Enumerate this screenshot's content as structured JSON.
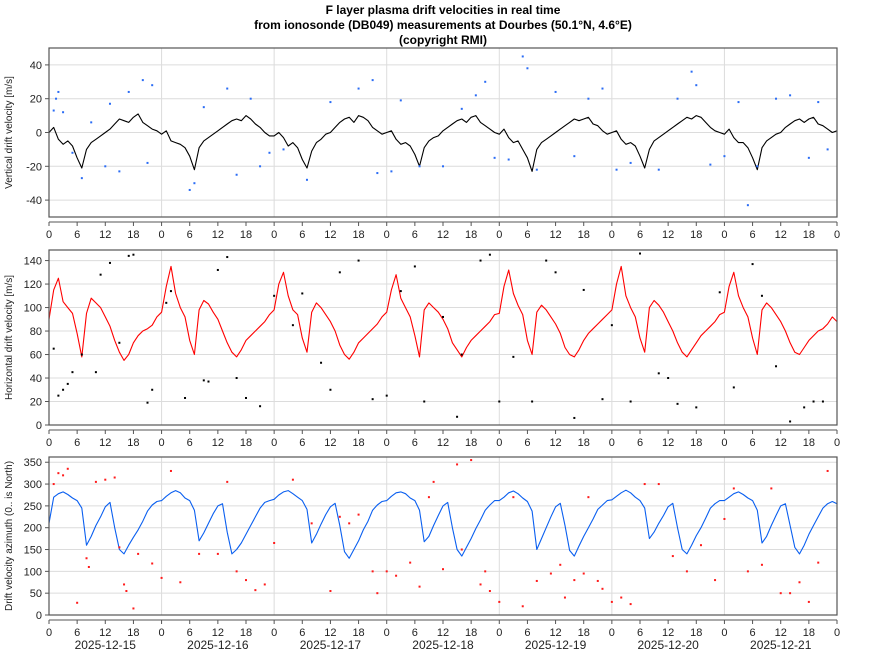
{
  "title": {
    "line1": "F layer plasma drift velocities in real time",
    "line2": "from ionosonde (DB049) measurements at Dourbes (50.1°N, 4.6°E)",
    "line3": "(copyright RMI)"
  },
  "chart_data": [
    {
      "type": "line",
      "name": "vertical",
      "ylabel": "Vertical drift velocity [m/s]",
      "ylim": [
        -50,
        50
      ],
      "yticks": [
        -40,
        -20,
        0,
        20,
        40
      ],
      "xlim_hours": [
        0,
        168
      ],
      "xtick_labels": [
        "0",
        "6",
        "12",
        "18",
        "0",
        "6",
        "12",
        "18",
        "0",
        "6",
        "12",
        "18",
        "0",
        "6",
        "12",
        "18",
        "0",
        "6",
        "12",
        "18",
        "0",
        "6",
        "12",
        "18",
        "0",
        "6",
        "12",
        "18",
        "0"
      ],
      "line_color": "#000000",
      "scatter_color": "#2a6cf5",
      "grid": true,
      "line_hourly": [
        0,
        3,
        -4,
        -7,
        -5,
        -8,
        -15,
        -21,
        -10,
        -6,
        -4,
        -2,
        0,
        2,
        5,
        8,
        7,
        6,
        9,
        11,
        6,
        4,
        2,
        1,
        -1,
        1,
        -5,
        -6,
        -7,
        -9,
        -14,
        -22,
        -9,
        -5,
        -3,
        -1,
        1,
        3,
        5,
        7,
        8,
        7,
        10,
        8,
        5,
        3,
        0,
        -2,
        -2,
        0,
        -3,
        -8,
        -6,
        -9,
        -16,
        -21,
        -11,
        -6,
        -4,
        -1,
        0,
        3,
        6,
        8,
        9,
        6,
        10,
        9,
        7,
        3,
        1,
        -1,
        0,
        1,
        -4,
        -7,
        -6,
        -8,
        -13,
        -20,
        -9,
        -5,
        -3,
        -2,
        1,
        3,
        5,
        7,
        8,
        6,
        9,
        10,
        6,
        4,
        2,
        0,
        -1,
        2,
        -3,
        -6,
        -5,
        -10,
        -15,
        -23,
        -10,
        -6,
        -4,
        -2,
        0,
        2,
        4,
        6,
        8,
        7,
        8,
        9,
        5,
        4,
        1,
        -1,
        0,
        1,
        -4,
        -7,
        -6,
        -8,
        -14,
        -21,
        -10,
        -5,
        -3,
        -1,
        1,
        3,
        5,
        7,
        9,
        8,
        10,
        9,
        6,
        3,
        1,
        0,
        -1,
        2,
        -3,
        -6,
        -6,
        -9,
        -15,
        -22,
        -9,
        -5,
        -3,
        -1,
        0,
        3,
        5,
        7,
        8,
        6,
        8,
        9,
        5,
        4,
        2,
        0,
        1
      ],
      "scatter": [
        [
          1,
          13
        ],
        [
          1.5,
          20
        ],
        [
          2,
          24
        ],
        [
          3,
          12
        ],
        [
          5,
          -12
        ],
        [
          7,
          -27
        ],
        [
          9,
          6
        ],
        [
          12,
          -20
        ],
        [
          13,
          17
        ],
        [
          15,
          -23
        ],
        [
          17,
          24
        ],
        [
          20,
          31
        ],
        [
          21,
          -18
        ],
        [
          22,
          28
        ],
        [
          30,
          -34
        ],
        [
          31,
          -30
        ],
        [
          33,
          15
        ],
        [
          38,
          26
        ],
        [
          40,
          -25
        ],
        [
          43,
          20
        ],
        [
          45,
          -20
        ],
        [
          47,
          -12
        ],
        [
          50,
          -10
        ],
        [
          55,
          -28
        ],
        [
          60,
          18
        ],
        [
          66,
          26
        ],
        [
          69,
          31
        ],
        [
          70,
          -24
        ],
        [
          73,
          -23
        ],
        [
          75,
          19
        ],
        [
          79,
          -20
        ],
        [
          84,
          -20
        ],
        [
          88,
          14
        ],
        [
          91,
          22
        ],
        [
          93,
          30
        ],
        [
          95,
          -15
        ],
        [
          98,
          -16
        ],
        [
          101,
          45
        ],
        [
          102,
          38
        ],
        [
          104,
          -22
        ],
        [
          108,
          24
        ],
        [
          112,
          -14
        ],
        [
          115,
          20
        ],
        [
          118,
          26
        ],
        [
          121,
          -22
        ],
        [
          124,
          -18
        ],
        [
          130,
          -22
        ],
        [
          134,
          20
        ],
        [
          137,
          36
        ],
        [
          138,
          28
        ],
        [
          141,
          -19
        ],
        [
          144,
          -14
        ],
        [
          147,
          18
        ],
        [
          149,
          -43
        ],
        [
          151,
          -20
        ],
        [
          155,
          20
        ],
        [
          158,
          22
        ],
        [
          162,
          -15
        ],
        [
          164,
          18
        ],
        [
          166,
          -10
        ]
      ]
    },
    {
      "type": "line",
      "name": "horizontal",
      "ylabel": "Horizontal drift velocity [m/s]",
      "ylim": [
        0,
        149
      ],
      "yticks": [
        0,
        20,
        40,
        60,
        80,
        100,
        120,
        140
      ],
      "xlim_hours": [
        0,
        168
      ],
      "xtick_labels": [
        "0",
        "6",
        "12",
        "18",
        "0",
        "6",
        "12",
        "18",
        "0",
        "6",
        "12",
        "18",
        "0",
        "6",
        "12",
        "18",
        "0",
        "6",
        "12",
        "18",
        "0",
        "6",
        "12",
        "18",
        "0",
        "6",
        "12",
        "18",
        "0"
      ],
      "line_color": "#ff0000",
      "scatter_color": "#000000",
      "grid": true,
      "line_hourly": [
        90,
        115,
        125,
        105,
        100,
        95,
        78,
        58,
        95,
        108,
        104,
        100,
        92,
        84,
        72,
        62,
        55,
        60,
        70,
        76,
        80,
        82,
        85,
        92,
        96,
        118,
        135,
        112,
        100,
        92,
        72,
        60,
        98,
        106,
        103,
        96,
        90,
        80,
        70,
        62,
        58,
        64,
        72,
        76,
        80,
        84,
        88,
        94,
        98,
        120,
        130,
        110,
        98,
        94,
        74,
        62,
        96,
        104,
        100,
        94,
        88,
        80,
        68,
        60,
        56,
        62,
        70,
        74,
        78,
        82,
        86,
        92,
        96,
        115,
        128,
        108,
        100,
        92,
        76,
        58,
        98,
        104,
        100,
        96,
        90,
        82,
        70,
        64,
        58,
        66,
        72,
        76,
        80,
        84,
        88,
        94,
        95,
        118,
        132,
        112,
        102,
        94,
        72,
        60,
        96,
        102,
        98,
        92,
        86,
        78,
        66,
        60,
        58,
        64,
        72,
        78,
        82,
        86,
        90,
        94,
        98,
        120,
        135,
        110,
        100,
        92,
        74,
        62,
        100,
        106,
        102,
        96,
        88,
        80,
        70,
        62,
        58,
        64,
        70,
        76,
        80,
        84,
        88,
        94,
        96,
        118,
        130,
        110,
        100,
        92,
        74,
        60,
        98,
        104,
        100,
        94,
        88,
        80,
        70,
        62,
        60,
        66,
        72,
        76,
        80,
        82,
        86,
        92,
        88
      ],
      "scatter": [
        [
          1,
          65
        ],
        [
          2,
          25
        ],
        [
          3,
          30
        ],
        [
          4,
          35
        ],
        [
          5,
          45
        ],
        [
          7,
          60
        ],
        [
          10,
          45
        ],
        [
          11,
          128
        ],
        [
          13,
          138
        ],
        [
          15,
          70
        ],
        [
          17,
          144
        ],
        [
          18,
          145
        ],
        [
          21,
          19
        ],
        [
          22,
          30
        ],
        [
          25,
          104
        ],
        [
          26,
          114
        ],
        [
          29,
          23
        ],
        [
          33,
          38
        ],
        [
          34,
          37
        ],
        [
          36,
          132
        ],
        [
          38,
          143
        ],
        [
          40,
          40
        ],
        [
          42,
          23
        ],
        [
          45,
          16
        ],
        [
          48,
          110
        ],
        [
          52,
          85
        ],
        [
          54,
          112
        ],
        [
          58,
          53
        ],
        [
          60,
          30
        ],
        [
          62,
          130
        ],
        [
          66,
          140
        ],
        [
          69,
          22
        ],
        [
          72,
          25
        ],
        [
          75,
          114
        ],
        [
          78,
          135
        ],
        [
          80,
          20
        ],
        [
          84,
          92
        ],
        [
          87,
          7
        ],
        [
          88,
          60
        ],
        [
          92,
          140
        ],
        [
          94,
          145
        ],
        [
          96,
          20
        ],
        [
          99,
          58
        ],
        [
          103,
          20
        ],
        [
          106,
          140
        ],
        [
          108,
          130
        ],
        [
          112,
          6
        ],
        [
          114,
          115
        ],
        [
          118,
          22
        ],
        [
          120,
          85
        ],
        [
          124,
          20
        ],
        [
          126,
          146
        ],
        [
          130,
          44
        ],
        [
          132,
          40
        ],
        [
          134,
          18
        ],
        [
          138,
          15
        ],
        [
          141,
          150
        ],
        [
          143,
          113
        ],
        [
          146,
          32
        ],
        [
          150,
          137
        ],
        [
          152,
          110
        ],
        [
          155,
          50
        ],
        [
          158,
          3
        ],
        [
          161,
          15
        ],
        [
          163,
          20
        ],
        [
          165,
          20
        ]
      ]
    },
    {
      "type": "line",
      "name": "azimuth",
      "ylabel": "Drift velocity azimuth (0.. is North)",
      "ylim": [
        0,
        362
      ],
      "yticks": [
        0,
        50,
        100,
        150,
        200,
        250,
        300,
        350
      ],
      "xlim_hours": [
        0,
        168
      ],
      "xtick_labels": [
        "0",
        "6",
        "12",
        "18",
        "0",
        "6",
        "12",
        "18",
        "0",
        "6",
        "12",
        "18",
        "0",
        "6",
        "12",
        "18",
        "0",
        "6",
        "12",
        "18",
        "0",
        "6",
        "12",
        "18",
        "0",
        "6",
        "12",
        "18",
        "0"
      ],
      "dates": [
        "2025-12-15",
        "2025-12-16",
        "2025-12-17",
        "2025-12-18",
        "2025-12-19",
        "2025-12-20",
        "2025-12-21"
      ],
      "line_color": "#0a5ff0",
      "scatter_color": "#ff1a1a",
      "grid": true,
      "line_hourly": [
        210,
        270,
        278,
        282,
        276,
        268,
        262,
        245,
        160,
        180,
        205,
        225,
        248,
        258,
        200,
        150,
        140,
        160,
        178,
        195,
        215,
        238,
        252,
        260,
        262,
        272,
        280,
        285,
        280,
        268,
        262,
        240,
        170,
        188,
        210,
        232,
        250,
        255,
        190,
        140,
        150,
        165,
        185,
        205,
        225,
        245,
        258,
        262,
        265,
        275,
        282,
        285,
        278,
        270,
        262,
        242,
        165,
        185,
        208,
        230,
        248,
        256,
        205,
        145,
        130,
        150,
        170,
        195,
        215,
        240,
        252,
        260,
        262,
        272,
        280,
        282,
        278,
        268,
        262,
        240,
        168,
        180,
        205,
        228,
        250,
        258,
        200,
        150,
        135,
        155,
        175,
        198,
        218,
        240,
        252,
        262,
        262,
        270,
        280,
        284,
        278,
        268,
        260,
        238,
        150,
        175,
        200,
        225,
        248,
        256,
        205,
        148,
        135,
        158,
        180,
        200,
        220,
        242,
        252,
        262,
        264,
        272,
        280,
        286,
        280,
        270,
        262,
        245,
        175,
        190,
        210,
        228,
        248,
        256,
        200,
        150,
        140,
        160,
        182,
        200,
        222,
        245,
        255,
        262,
        262,
        270,
        278,
        282,
        276,
        268,
        262,
        240,
        165,
        180,
        205,
        228,
        250,
        255,
        205,
        155,
        140,
        160,
        185,
        205,
        225,
        245,
        255,
        260,
        255
      ],
      "scatter": [
        [
          1,
          300
        ],
        [
          2,
          325
        ],
        [
          3,
          320
        ],
        [
          4,
          335
        ],
        [
          6,
          28
        ],
        [
          8,
          130
        ],
        [
          8.5,
          110
        ],
        [
          10,
          305
        ],
        [
          12,
          310
        ],
        [
          14,
          315
        ],
        [
          15,
          155
        ],
        [
          16,
          70
        ],
        [
          16.5,
          55
        ],
        [
          18,
          15
        ],
        [
          19,
          140
        ],
        [
          22,
          118
        ],
        [
          24,
          85
        ],
        [
          26,
          330
        ],
        [
          28,
          75
        ],
        [
          32,
          140
        ],
        [
          36,
          140
        ],
        [
          38,
          305
        ],
        [
          40,
          100
        ],
        [
          42,
          80
        ],
        [
          44,
          57
        ],
        [
          46,
          70
        ],
        [
          48,
          165
        ],
        [
          52,
          310
        ],
        [
          56,
          210
        ],
        [
          60,
          55
        ],
        [
          62,
          225
        ],
        [
          64,
          210
        ],
        [
          66,
          230
        ],
        [
          69,
          100
        ],
        [
          70,
          50
        ],
        [
          72,
          100
        ],
        [
          74,
          90
        ],
        [
          77,
          120
        ],
        [
          79,
          65
        ],
        [
          81,
          270
        ],
        [
          82,
          305
        ],
        [
          84,
          105
        ],
        [
          87,
          345
        ],
        [
          88,
          150
        ],
        [
          90,
          355
        ],
        [
          92,
          70
        ],
        [
          93,
          100
        ],
        [
          94,
          55
        ],
        [
          96,
          30
        ],
        [
          99,
          270
        ],
        [
          101,
          20
        ],
        [
          104,
          78
        ],
        [
          107,
          95
        ],
        [
          109,
          115
        ],
        [
          110,
          40
        ],
        [
          112,
          80
        ],
        [
          114,
          95
        ],
        [
          115,
          270
        ],
        [
          117,
          78
        ],
        [
          118,
          60
        ],
        [
          120,
          30
        ],
        [
          122,
          40
        ],
        [
          124,
          25
        ],
        [
          127,
          300
        ],
        [
          130,
          300
        ],
        [
          133,
          135
        ],
        [
          136,
          100
        ],
        [
          139,
          160
        ],
        [
          142,
          80
        ],
        [
          144,
          220
        ],
        [
          146,
          290
        ],
        [
          149,
          100
        ],
        [
          152,
          115
        ],
        [
          154,
          290
        ],
        [
          156,
          50
        ],
        [
          158,
          50
        ],
        [
          160,
          75
        ],
        [
          162,
          30
        ],
        [
          164,
          120
        ],
        [
          166,
          330
        ]
      ]
    }
  ]
}
